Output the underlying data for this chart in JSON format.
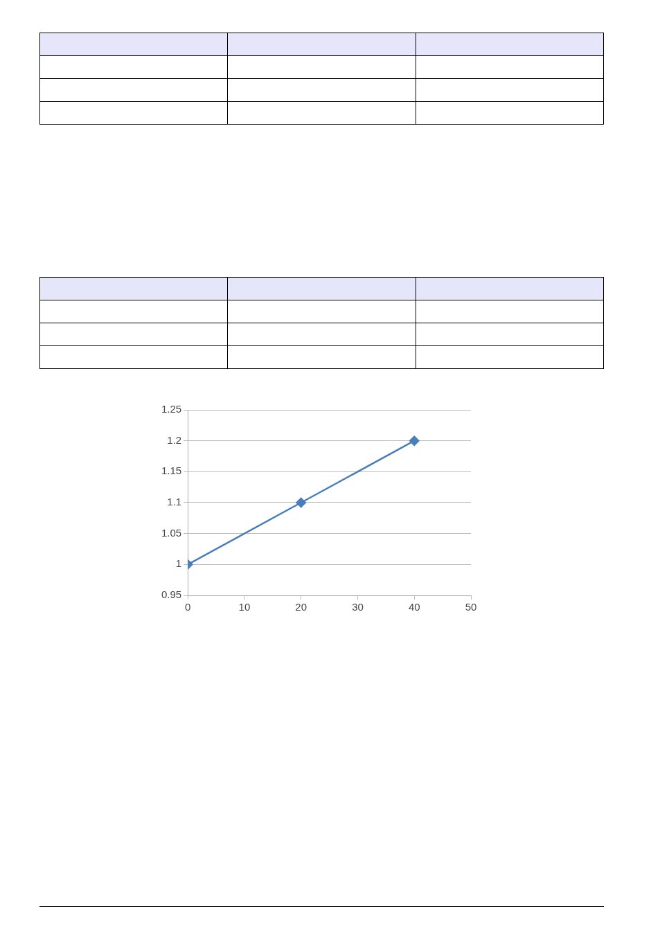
{
  "chart_data": {
    "type": "line",
    "x": [
      0,
      20,
      40
    ],
    "series": [
      {
        "color": "#4a7ebb",
        "values": [
          1,
          1.1,
          1.2
        ]
      }
    ],
    "xlim": [
      0,
      50
    ],
    "xticks": [
      0,
      10,
      20,
      30,
      40,
      50
    ],
    "ylim": [
      0.95,
      1.25
    ],
    "yticks": [
      0.95,
      1,
      1.05,
      1.1,
      1.15,
      1.2,
      1.25
    ],
    "grid": "y",
    "legend": false,
    "marker": "diamond",
    "line_style": "solid"
  }
}
